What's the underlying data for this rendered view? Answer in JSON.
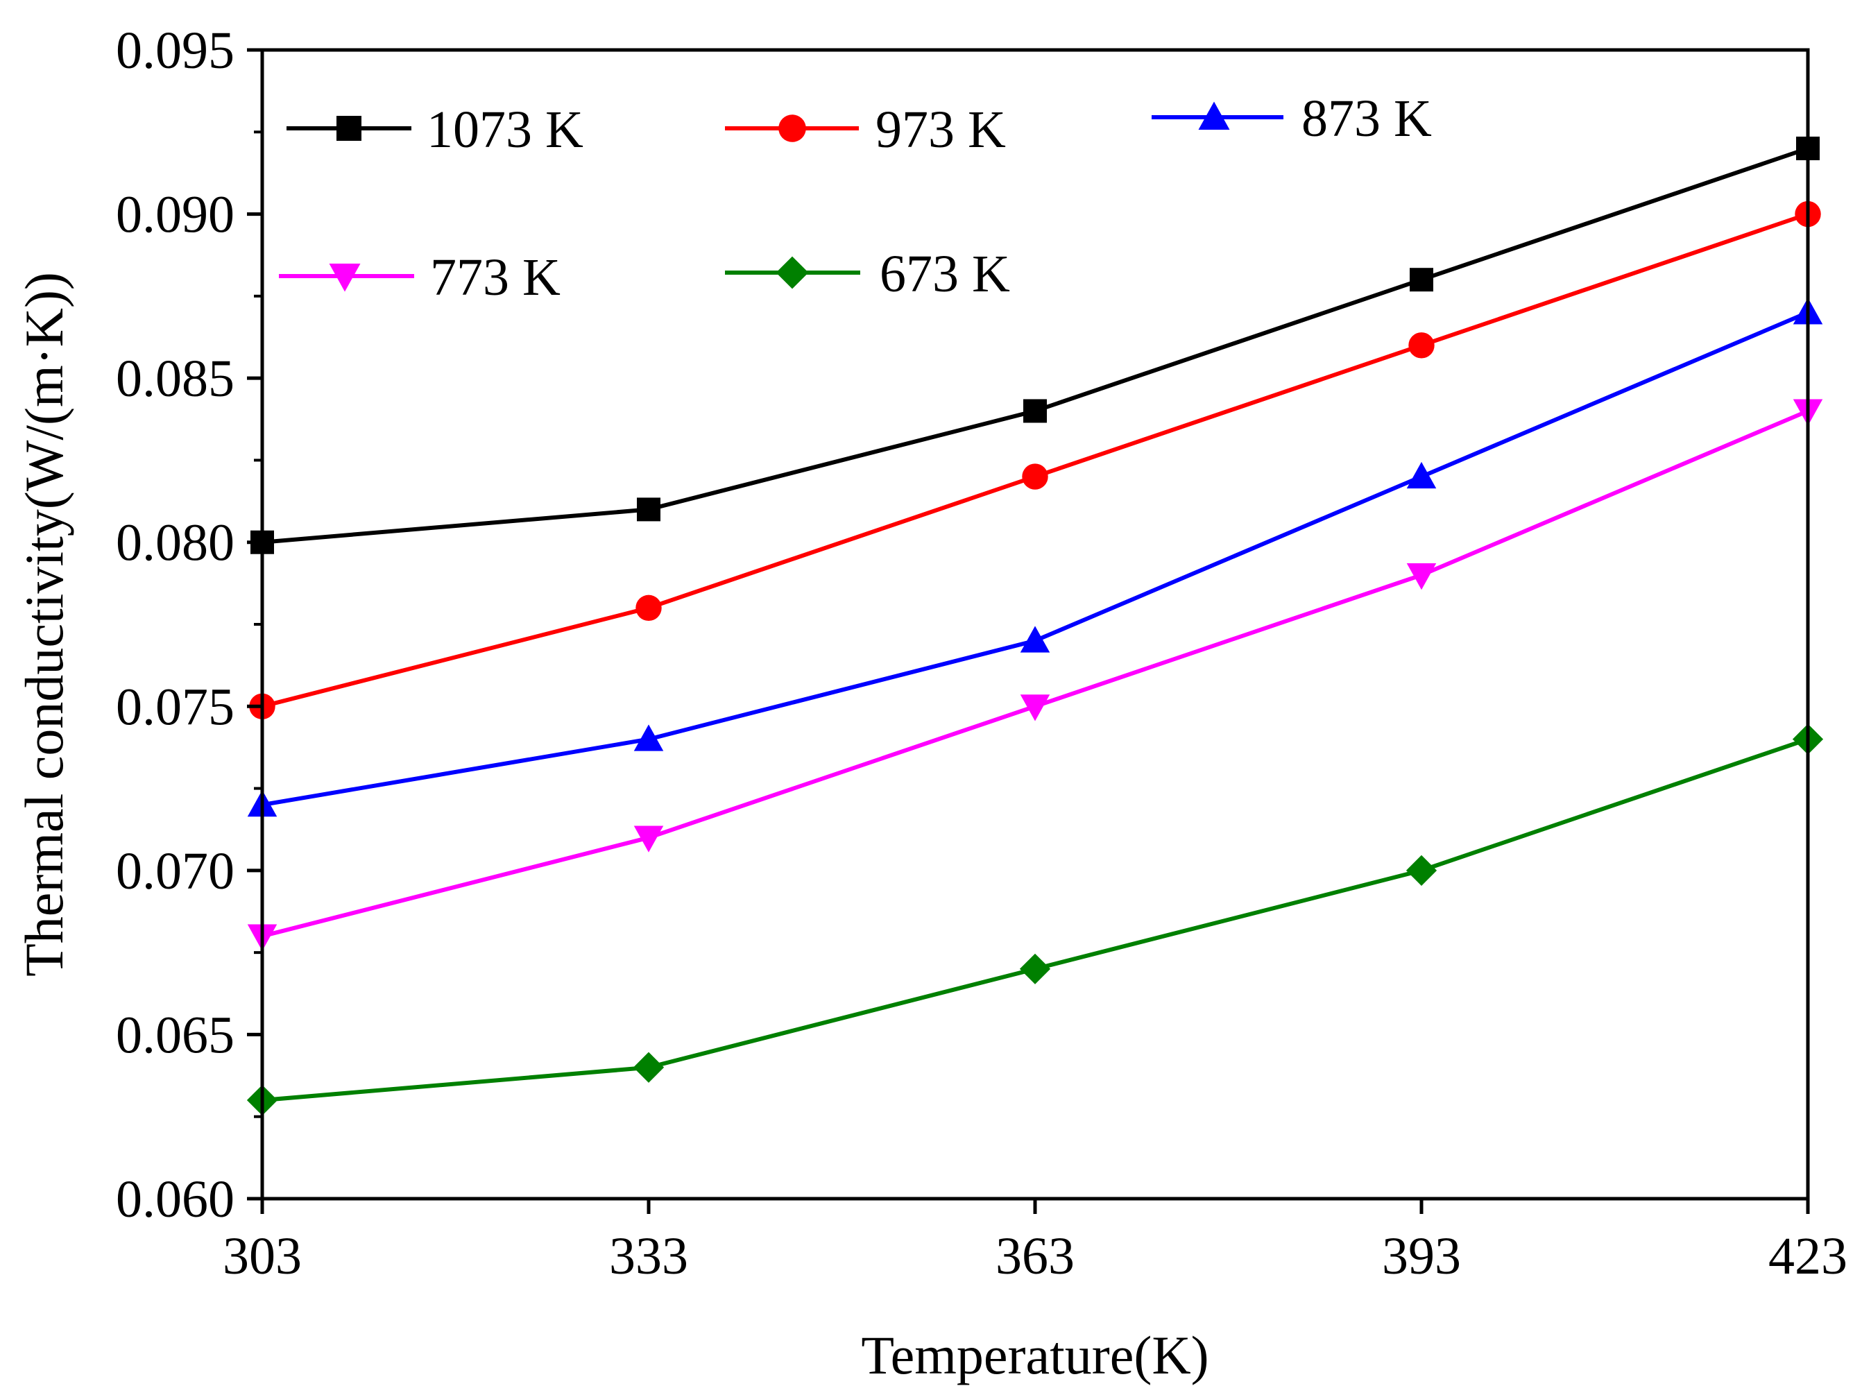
{
  "chart_data": {
    "type": "line",
    "title": "",
    "xlabel": "Temperature(K)",
    "ylabel": "Thermal conductivity(W/(m·K))",
    "x": [
      303,
      333,
      363,
      393,
      423
    ],
    "xticks": [
      "303",
      "333",
      "363",
      "393",
      "423"
    ],
    "xlim": [
      303,
      423
    ],
    "ylim": [
      0.06,
      0.095
    ],
    "yticks": [
      "0.060",
      "0.065",
      "0.070",
      "0.075",
      "0.080",
      "0.085",
      "0.090",
      "0.095"
    ],
    "grid": false,
    "legend_position": "top, inside plot",
    "series": [
      {
        "name": "1073 K",
        "color": "#000000",
        "marker": "square",
        "values": [
          0.08,
          0.081,
          0.084,
          0.088,
          0.092
        ]
      },
      {
        "name": "973 K",
        "color": "#ff0000",
        "marker": "circle",
        "values": [
          0.075,
          0.078,
          0.082,
          0.086,
          0.09
        ]
      },
      {
        "name": "873 K",
        "color": "#0000ff",
        "marker": "triangle-up",
        "values": [
          0.072,
          0.074,
          0.077,
          0.082,
          0.087
        ]
      },
      {
        "name": "773 K",
        "color": "#ff00ff",
        "marker": "triangle-down",
        "values": [
          0.068,
          0.071,
          0.075,
          0.079,
          0.084
        ]
      },
      {
        "name": "673 K",
        "color": "#008000",
        "marker": "diamond",
        "values": [
          0.063,
          0.064,
          0.067,
          0.07,
          0.074
        ]
      }
    ]
  }
}
